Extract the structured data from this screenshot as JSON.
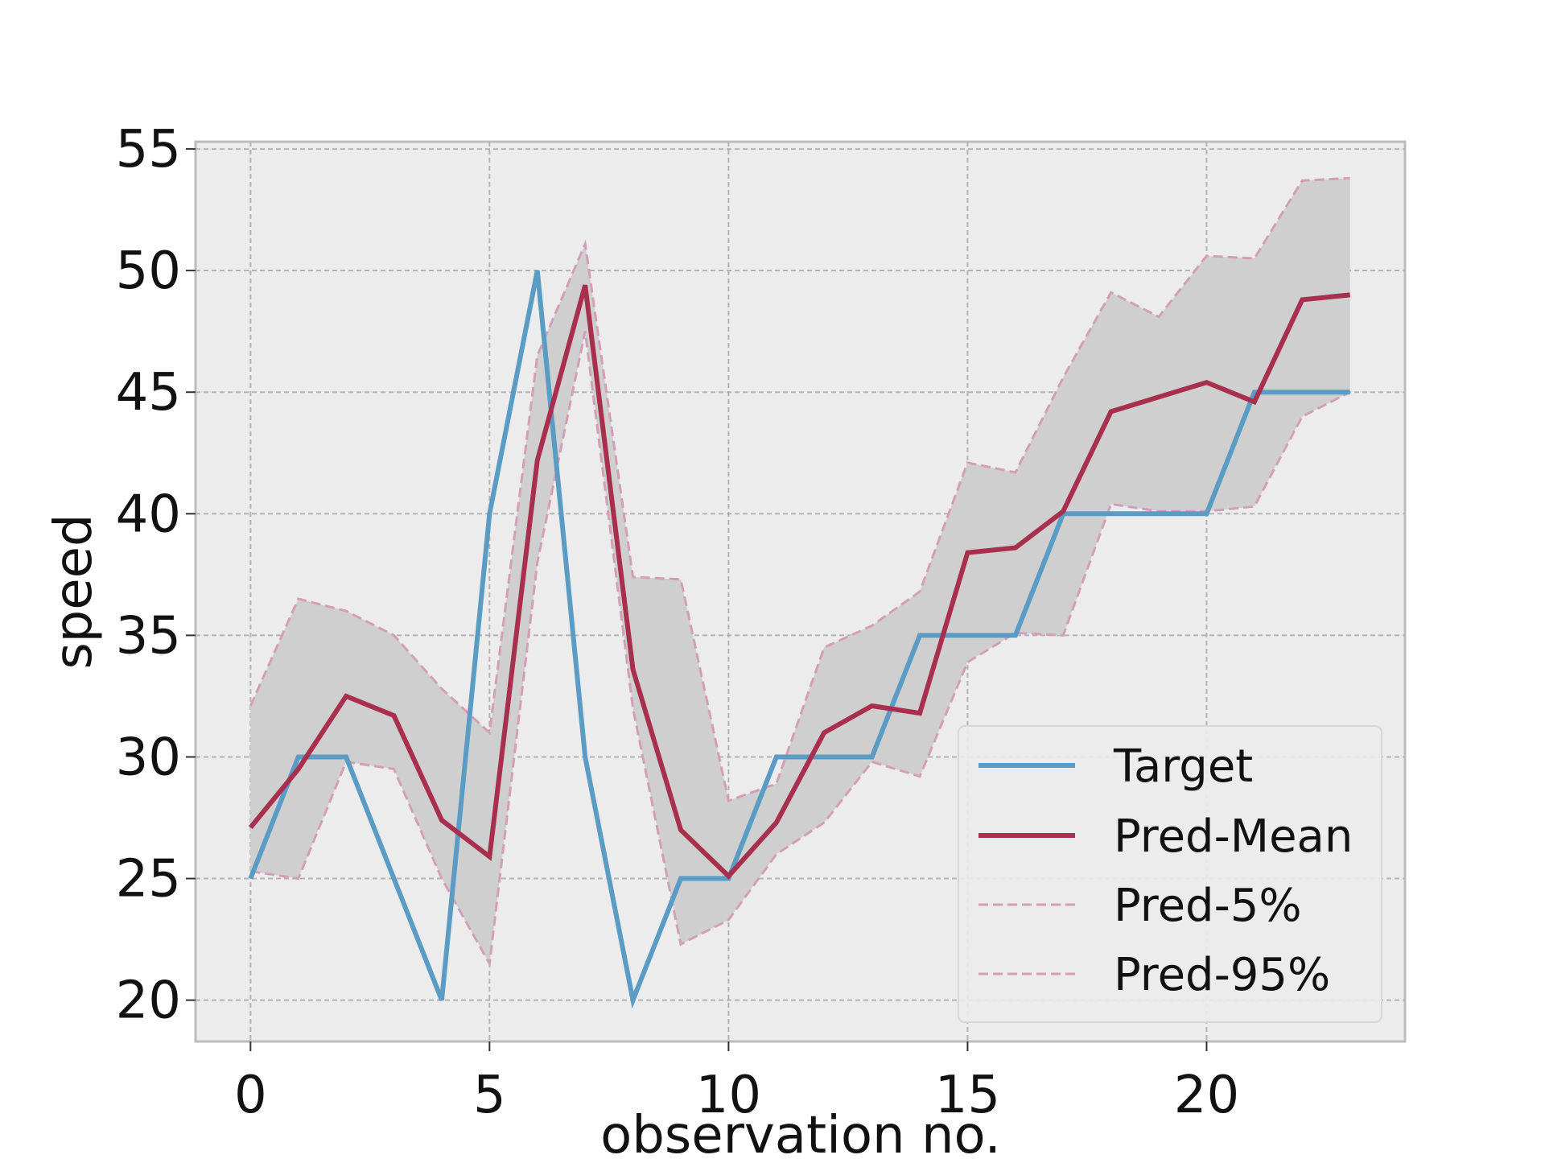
{
  "chart_data": {
    "type": "line",
    "title": "",
    "xlabel": "observation no.",
    "ylabel": "speed",
    "xlim": [
      -1.15,
      24.15
    ],
    "ylim": [
      18.3,
      55.3
    ],
    "xticks": [
      0,
      5,
      10,
      15,
      20
    ],
    "yticks": [
      20,
      25,
      30,
      35,
      40,
      45,
      50,
      55
    ],
    "grid": true,
    "legend_position": "lower-right",
    "colors": {
      "plot_background": "#ececec",
      "band_fill": "#cfcfcf",
      "grid": "#b3b3b3",
      "frame": "#bcbcbc"
    },
    "x": [
      0,
      1,
      2,
      3,
      4,
      5,
      6,
      7,
      8,
      9,
      10,
      11,
      12,
      13,
      14,
      15,
      16,
      17,
      18,
      19,
      20,
      21,
      22,
      23
    ],
    "series": [
      {
        "name": "Target",
        "color": "#5b9cc4",
        "style": "solid",
        "values": [
          25,
          30,
          30,
          25,
          20,
          40,
          50,
          30,
          20,
          25,
          25,
          30,
          30,
          30,
          35,
          35,
          35,
          40,
          40,
          40,
          40,
          45,
          45,
          45
        ]
      },
      {
        "name": "Pred-Mean",
        "color": "#a8304e",
        "style": "solid",
        "values": [
          27.1,
          29.5,
          32.5,
          31.7,
          27.4,
          25.9,
          42.2,
          49.4,
          33.6,
          27.0,
          25.1,
          27.3,
          31.0,
          32.1,
          31.8,
          38.4,
          38.6,
          40.1,
          44.2,
          44.8,
          45.4,
          44.6,
          48.8,
          49.0
        ]
      },
      {
        "name": "Pred-5%",
        "color": "#d39fb6",
        "style": "dashed",
        "values": [
          25.3,
          25.0,
          29.8,
          29.5,
          25.0,
          21.5,
          38.0,
          47.5,
          32.0,
          22.3,
          23.3,
          26.0,
          27.3,
          29.8,
          29.2,
          33.9,
          35.1,
          35.0,
          40.4,
          40.1,
          40.1,
          40.3,
          44.0,
          45.0
        ]
      },
      {
        "name": "Pred-95%",
        "color": "#d39fb6",
        "style": "dashed",
        "values": [
          32.1,
          36.5,
          36.0,
          35.0,
          32.8,
          31.0,
          46.5,
          51.1,
          37.4,
          37.3,
          28.2,
          28.9,
          34.5,
          35.4,
          36.8,
          42.1,
          41.7,
          45.6,
          49.1,
          48.1,
          50.6,
          50.5,
          53.7,
          53.8
        ]
      }
    ]
  }
}
